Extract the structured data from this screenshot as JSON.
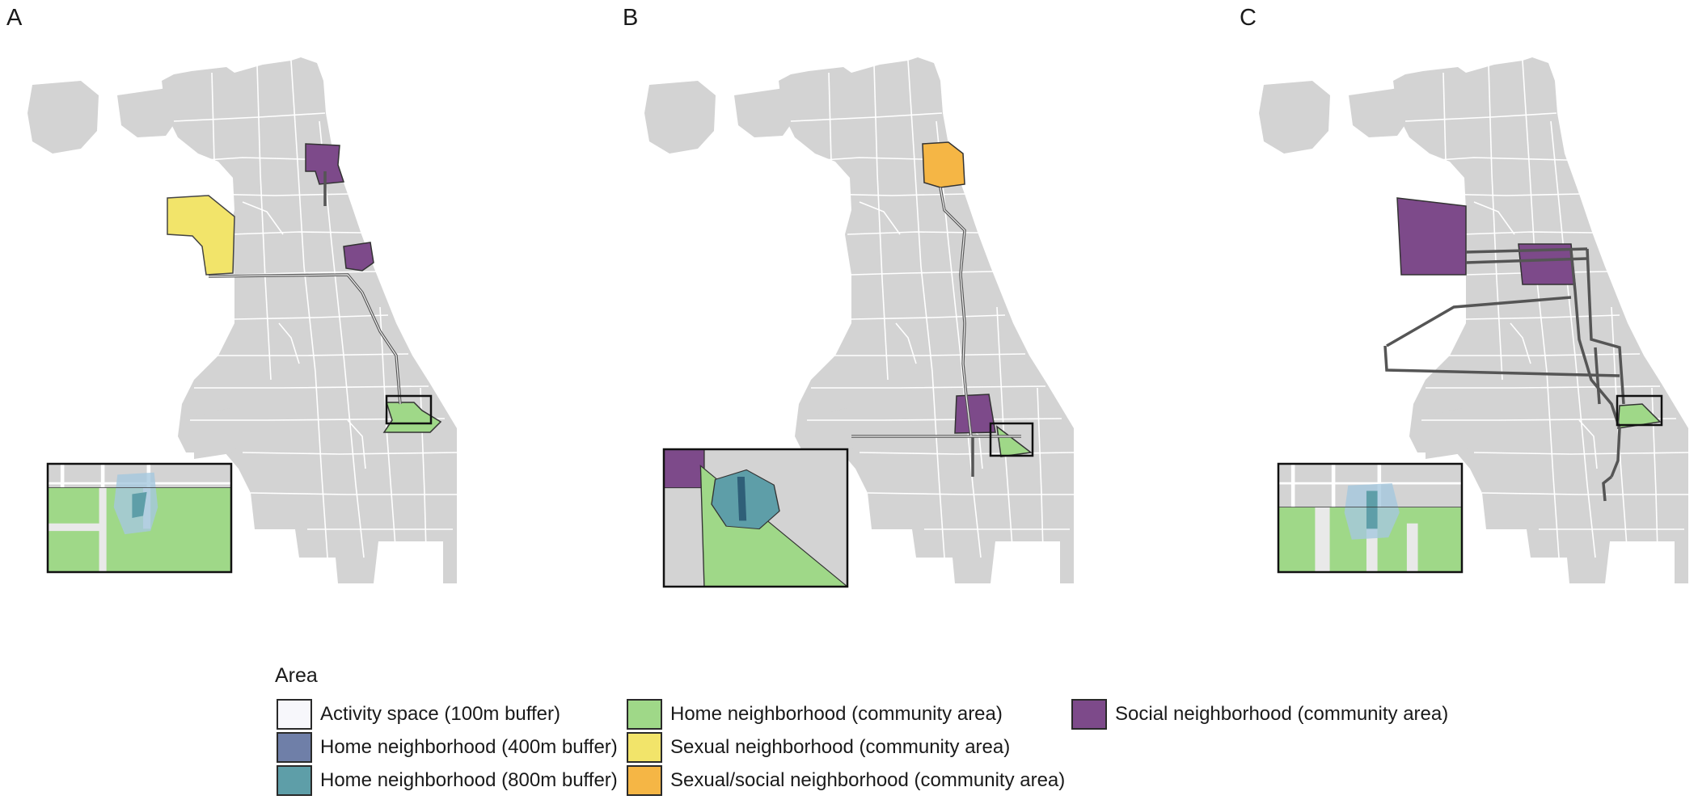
{
  "panels": [
    {
      "letter": "A"
    },
    {
      "letter": "B"
    },
    {
      "letter": "C"
    }
  ],
  "legend": {
    "title": "Area",
    "items": [
      {
        "label": "Activity space (100m buffer)",
        "color": "#f7f7fb"
      },
      {
        "label": "Home neighborhood (400m buffer)",
        "color": "#6f7fa8"
      },
      {
        "label": "Home neighborhood (800m buffer)",
        "color": "#5e9ea8"
      },
      {
        "label": "Home neighborhood (community area)",
        "color": "#9fd888"
      },
      {
        "label": "Sexual neighborhood (community area)",
        "color": "#f2e46a"
      },
      {
        "label": "Sexual/social neighborhood (community area)",
        "color": "#f5b645"
      },
      {
        "label": "Social neighborhood (community area)",
        "color": "#7d4a8a"
      }
    ]
  },
  "colors": {
    "base_map": "#d3d3d3",
    "boundary": "#ffffff",
    "route": "#555555"
  }
}
